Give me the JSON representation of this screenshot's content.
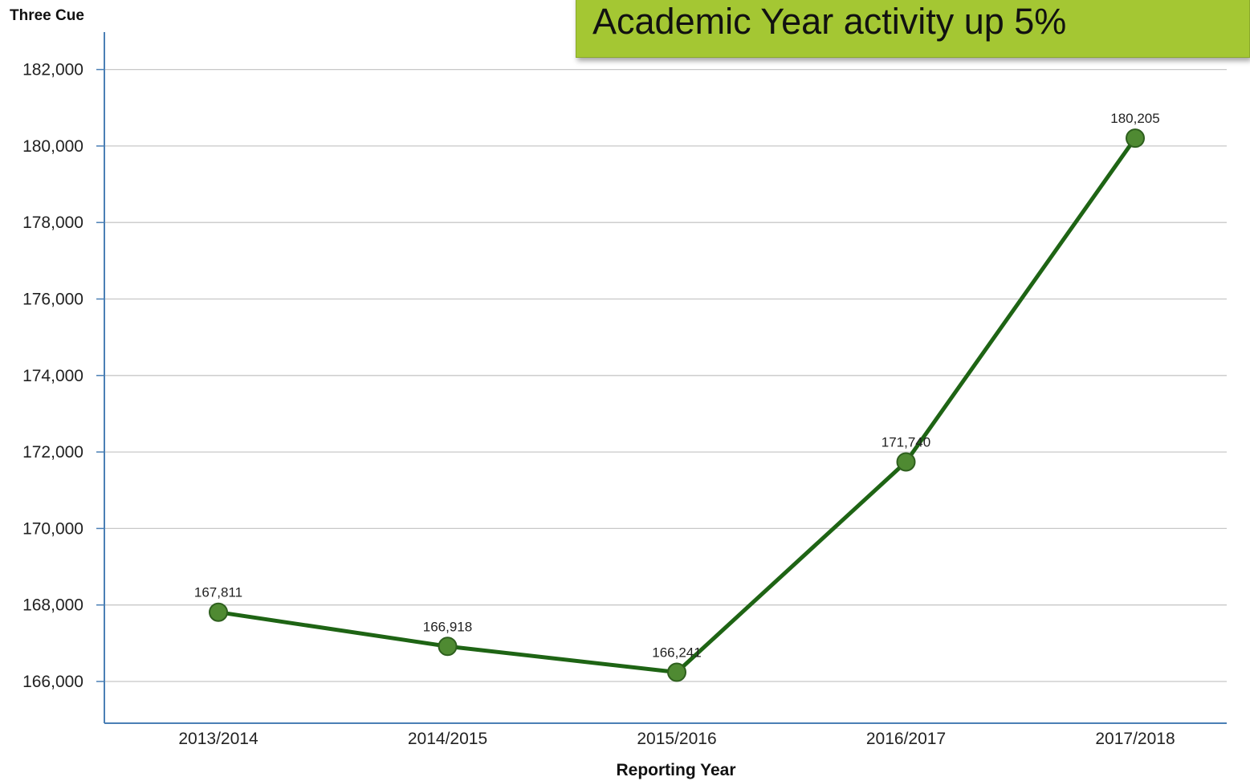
{
  "callout": {
    "text": "Academic Year activity up 5%"
  },
  "chart_data": {
    "type": "line",
    "title": "",
    "ylabel": "Three Cue",
    "xlabel": "Reporting Year",
    "categories": [
      "2013/2014",
      "2014/2015",
      "2015/2016",
      "2016/2017",
      "2017/2018"
    ],
    "series": [
      {
        "values": [
          167811,
          166918,
          166241,
          171740,
          180205
        ]
      }
    ],
    "data_labels": [
      "167,811",
      "166,918",
      "166,241",
      "171,740",
      "180,205"
    ],
    "ylim": [
      165000,
      183000
    ],
    "yticks": [
      166000,
      168000,
      170000,
      172000,
      174000,
      176000,
      178000,
      180000,
      182000
    ],
    "ytick_labels": [
      "166,000",
      "168,000",
      "170,000",
      "172,000",
      "174,000",
      "176,000",
      "178,000",
      "180,000",
      "182,000"
    ],
    "grid": true,
    "colors": {
      "line": "#1e6414",
      "marker": "#4f8a32",
      "grid": "#c8c8c8",
      "axis": "#4a7fb5",
      "callout": "#a4c733"
    }
  }
}
